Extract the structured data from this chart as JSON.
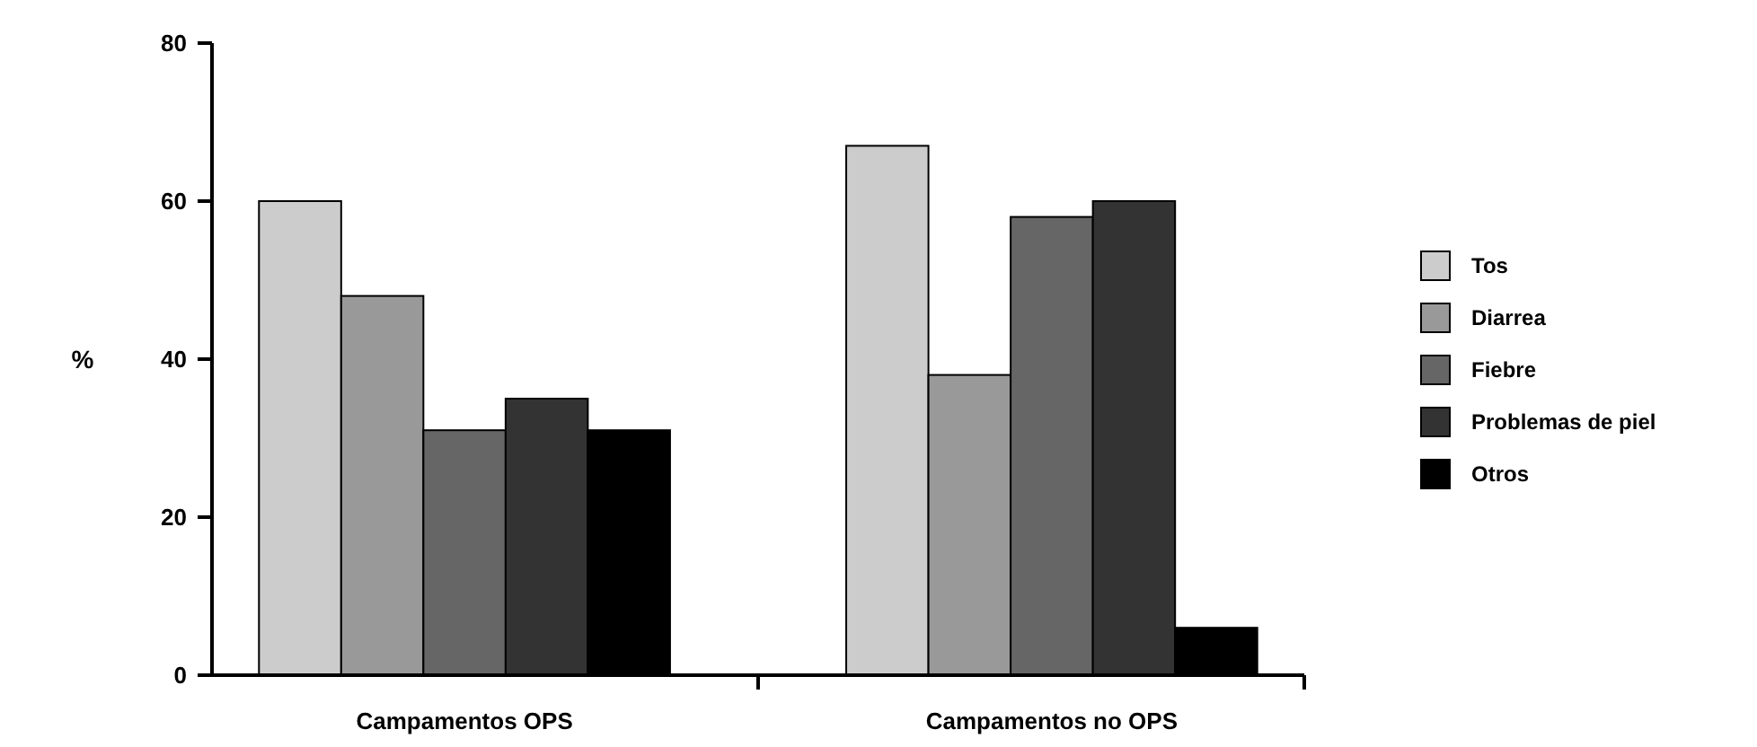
{
  "chart_data": {
    "type": "bar",
    "ylabel": "%",
    "categories": [
      "Campamentos OPS",
      "Campamentos no OPS"
    ],
    "series": [
      {
        "name": "Tos",
        "color": "#cccccc",
        "values": [
          60,
          67
        ]
      },
      {
        "name": "Diarrea",
        "color": "#999999",
        "values": [
          48,
          38
        ]
      },
      {
        "name": "Fiebre",
        "color": "#666666",
        "values": [
          31,
          58
        ]
      },
      {
        "name": "Problemas de piel",
        "color": "#333333",
        "values": [
          35,
          60
        ]
      },
      {
        "name": "Otros",
        "color": "#000000",
        "values": [
          31,
          6
        ]
      }
    ],
    "ylim": [
      0,
      80
    ],
    "yticks": [
      0,
      20,
      40,
      60,
      80
    ],
    "grid": false,
    "legend": "right"
  }
}
